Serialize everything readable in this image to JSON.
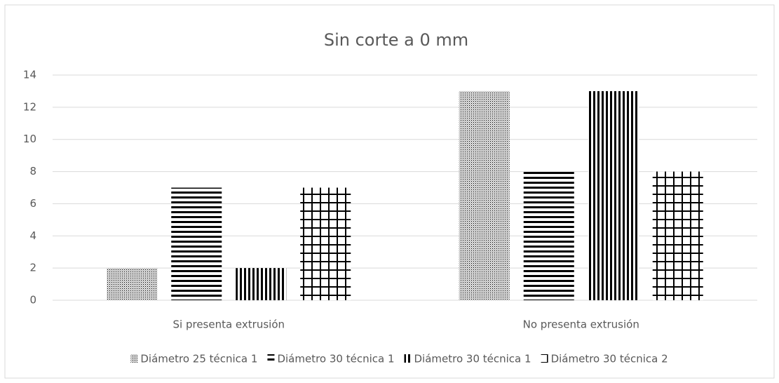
{
  "chart_data": {
    "type": "bar",
    "title": "Sin corte a 0 mm",
    "categories": [
      "Si presenta extrusión",
      "No presenta extrusión"
    ],
    "series": [
      {
        "name": "Diámetro 25 técnica 1",
        "color": "#000000",
        "pattern": "dots",
        "values": [
          2,
          13
        ]
      },
      {
        "name": "Diámetro 30 técnica 1",
        "color": "#000000",
        "pattern": "horizontal",
        "values": [
          7,
          8
        ]
      },
      {
        "name": "Diámetro 30 técnica 1",
        "color": "#000000",
        "pattern": "vertical",
        "values": [
          2,
          13
        ]
      },
      {
        "name": "Diámetro 30 técnica 2",
        "color": "#000000",
        "pattern": "grid",
        "values": [
          7,
          8
        ]
      }
    ],
    "ylim": [
      0,
      14
    ],
    "yticks": [
      0,
      2,
      4,
      6,
      8,
      10,
      12,
      14
    ],
    "grid": true,
    "legend": "bottom"
  }
}
